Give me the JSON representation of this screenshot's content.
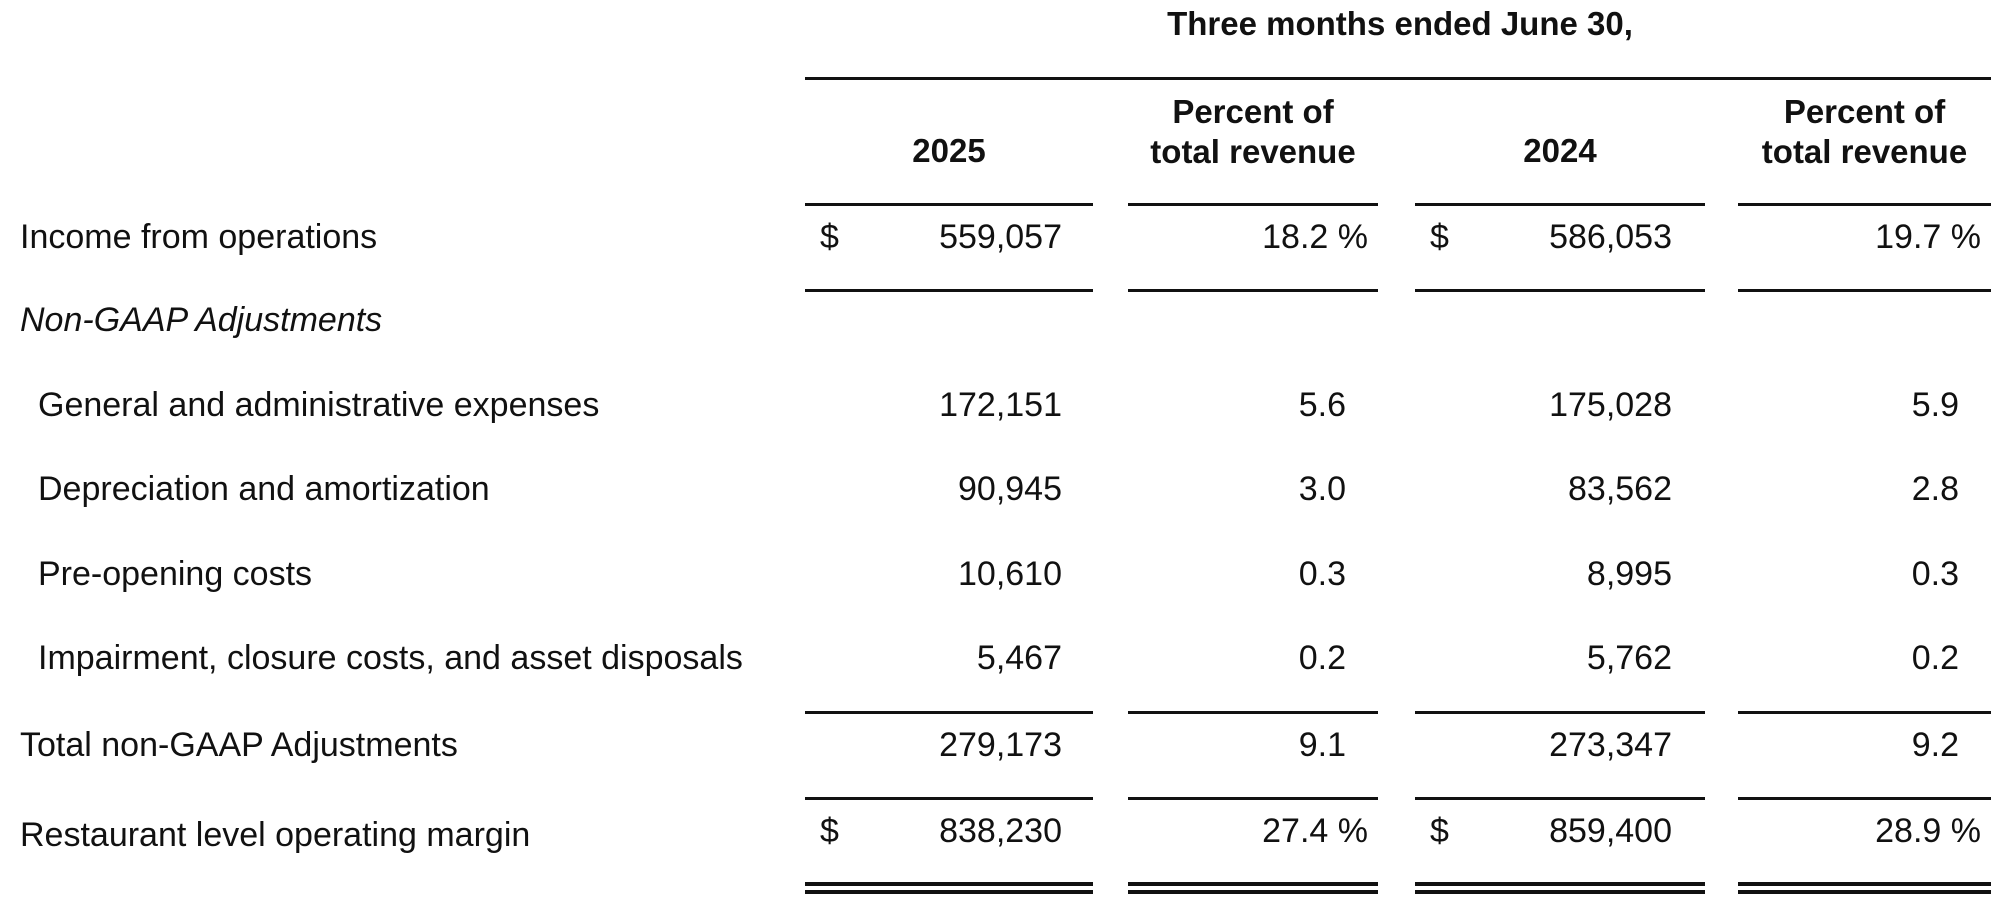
{
  "period_header": "Three months ended June 30,",
  "columns": [
    {
      "label": "2025"
    },
    {
      "label": "Percent of\ntotal revenue",
      "line1": "Percent of",
      "line2": "total revenue"
    },
    {
      "label": "2024"
    },
    {
      "label": "Percent of\ntotal revenue",
      "line1": "Percent of",
      "line2": "total revenue"
    }
  ],
  "currency_symbol": "$",
  "rows": [
    {
      "label": "Income from operations",
      "v2025": "559,057",
      "p2025": "18.2 %",
      "v2024": "586,053",
      "p2024": "19.7 %"
    },
    {
      "label": "Non-GAAP Adjustments"
    },
    {
      "label": "General and administrative expenses",
      "v2025": "172,151",
      "p2025": "5.6",
      "v2024": "175,028",
      "p2024": "5.9"
    },
    {
      "label": "Depreciation and amortization",
      "v2025": "90,945",
      "p2025": "3.0",
      "v2024": "83,562",
      "p2024": "2.8"
    },
    {
      "label": "Pre-opening costs",
      "v2025": "10,610",
      "p2025": "0.3",
      "v2024": "8,995",
      "p2024": "0.3"
    },
    {
      "label": "Impairment, closure costs, and asset disposals",
      "v2025": "5,467",
      "p2025": "0.2",
      "v2024": "5,762",
      "p2024": "0.2"
    },
    {
      "label": "Total non-GAAP Adjustments",
      "v2025": "279,173",
      "p2025": "9.1",
      "v2024": "273,347",
      "p2024": "9.2"
    },
    {
      "label": "Restaurant level operating margin",
      "v2025": "838,230",
      "p2025": "27.4 %",
      "v2024": "859,400",
      "p2024": "28.9 %"
    }
  ]
}
